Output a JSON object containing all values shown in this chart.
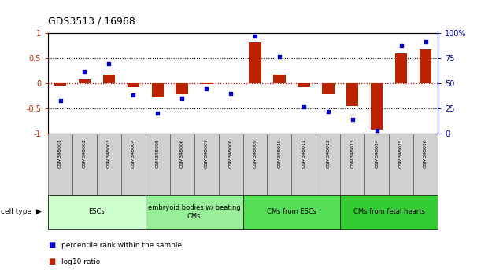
{
  "title": "GDS3513 / 16968",
  "samples": [
    "GSM348001",
    "GSM348002",
    "GSM348003",
    "GSM348004",
    "GSM348005",
    "GSM348006",
    "GSM348007",
    "GSM348008",
    "GSM348009",
    "GSM348010",
    "GSM348011",
    "GSM348012",
    "GSM348013",
    "GSM348014",
    "GSM348015",
    "GSM348016"
  ],
  "log10_ratio": [
    -0.05,
    0.08,
    0.18,
    -0.07,
    -0.28,
    -0.22,
    -0.02,
    0.01,
    0.82,
    0.18,
    -0.08,
    -0.22,
    -0.45,
    -0.92,
    0.6,
    0.68
  ],
  "percentile_rank": [
    33,
    62,
    70,
    38,
    20,
    35,
    45,
    40,
    97,
    77,
    27,
    22,
    14,
    3,
    88,
    92
  ],
  "bar_color": "#bb2200",
  "dot_color": "#0000cc",
  "zero_line_color": "#cc0000",
  "cell_type_groups": [
    {
      "label": "ESCs",
      "start": 0,
      "end": 3,
      "color": "#ccffcc"
    },
    {
      "label": "embryoid bodies w/ beating\nCMs",
      "start": 4,
      "end": 7,
      "color": "#99ee99"
    },
    {
      "label": "CMs from ESCs",
      "start": 8,
      "end": 11,
      "color": "#55dd55"
    },
    {
      "label": "CMs from fetal hearts",
      "start": 12,
      "end": 15,
      "color": "#33cc33"
    }
  ],
  "legend_red_label": "log10 ratio",
  "legend_blue_label": "percentile rank within the sample",
  "cell_type_label": "cell type",
  "figsize": [
    6.11,
    3.54
  ],
  "dpi": 100
}
